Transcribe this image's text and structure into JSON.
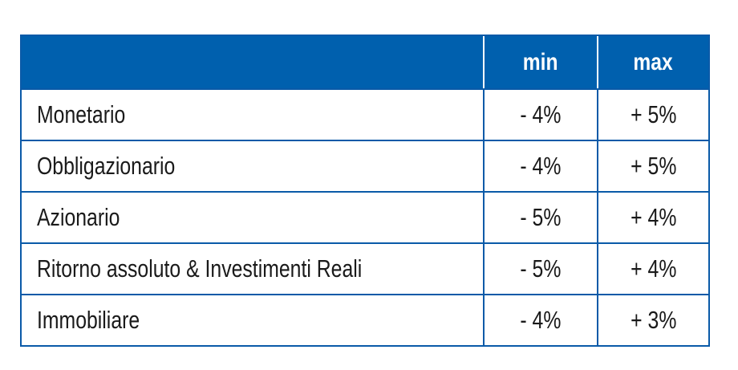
{
  "table": {
    "headers": {
      "label": "",
      "min": "min",
      "max": "max"
    },
    "rows": [
      {
        "label": "Monetario",
        "min": "- 4%",
        "max": "+ 5%"
      },
      {
        "label": "Obbligazionario",
        "min": "- 4%",
        "max": "+ 5%"
      },
      {
        "label": "Azionario",
        "min": "- 5%",
        "max": "+ 4%"
      },
      {
        "label": "Ritorno assoluto & Investimenti Reali",
        "min": "- 5%",
        "max": "+ 4%"
      },
      {
        "label": "Immobiliare",
        "min": "- 4%",
        "max": "+ 3%"
      }
    ]
  },
  "colors": {
    "header_bg": "#0060ae",
    "border": "#0a5aa8",
    "header_text": "#ffffff",
    "body_text": "#1a1a1a"
  }
}
